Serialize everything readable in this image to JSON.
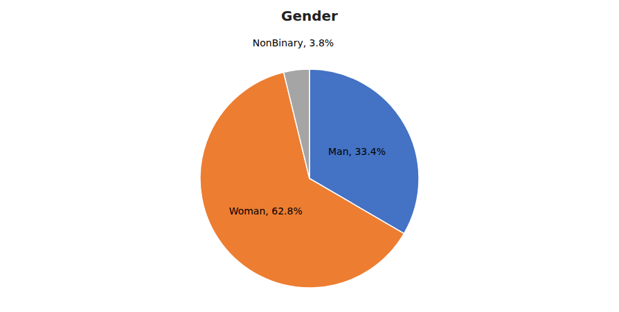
{
  "chart_data": {
    "type": "pie",
    "title": "Gender",
    "values": [
      33.4,
      62.8,
      3.8
    ],
    "value_labels": [
      "Man, 33.4%",
      "Woman, 62.8%",
      "NonBinary, 3.8%"
    ],
    "data_labels": true,
    "colors": [
      "#4472C4",
      "#ED7D31",
      "#A5A5A5"
    ]
  }
}
